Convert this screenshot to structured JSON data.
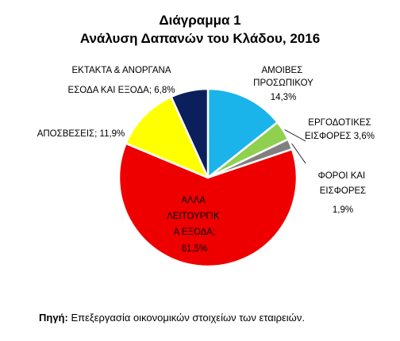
{
  "chart_data": {
    "type": "pie",
    "title": "Διάγραμμα 1",
    "subtitle": "Ανάλυση Δαπανών του Κλάδου, 2016",
    "slices": [
      {
        "label": "ΑΜΟΙΒΕΣ ΠΡΟΣΩΠΙΚΟΥ",
        "value": 14.3,
        "value_label": "14,3%",
        "color": "#1ab4ea"
      },
      {
        "label": "ΕΡΓΟΔΟΤΙΚΕΣ ΕΙΣΦΟΡΕΣ",
        "value": 3.6,
        "value_label": "3,6%",
        "color": "#8fd14f"
      },
      {
        "label": "ΦΟΡΟΙ ΚΑΙ ΕΙΣΦΟΡΕΣ",
        "value": 1.9,
        "value_label": "1,9%",
        "color": "#808080"
      },
      {
        "label": "ΑΛΛΑ ΛΕΙΤΟΥΡΓΙΚΑ ΕΞΟΔΑ",
        "value": 61.5,
        "value_label": "61,5%",
        "color": "#ee0000"
      },
      {
        "label": "ΑΠΟΣΒΕΣΕΙΣ",
        "value": 11.9,
        "value_label": "11,9%",
        "color": "#ffff00"
      },
      {
        "label": "ΕΚΤΑΚΤΑ & ΑΝΟΡΓΑΝΑ ΕΣΟΔΑ ΚΑΙ ΕΞΟΔΑ",
        "value": 6.8,
        "value_label": "6,8%",
        "color": "#0a1f5c"
      }
    ],
    "start_angle_deg": 0,
    "direction": "clockwise",
    "legend": "none"
  },
  "source": {
    "label": "Πηγή:",
    "text": "Επεξεργασία οικονομικών στοιχείων των εταιρειών."
  }
}
